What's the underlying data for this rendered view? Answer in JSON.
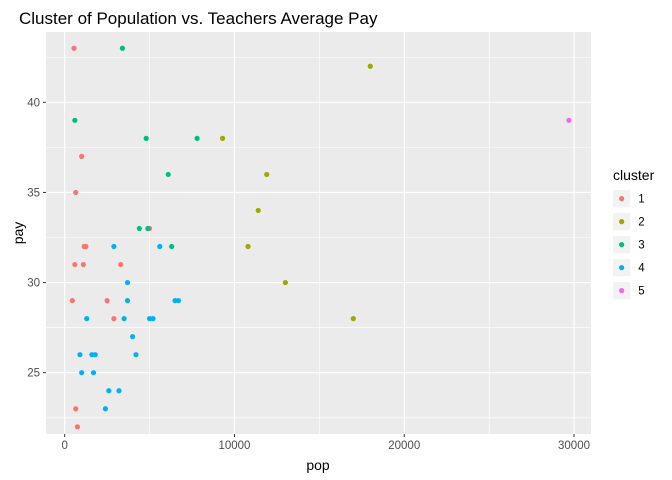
{
  "chart_data": {
    "type": "scatter",
    "title": "Cluster of Population vs. Teachers Average Pay",
    "xlabel": "pop",
    "ylabel": "pay",
    "xlim": [
      -1100,
      31000
    ],
    "ylim": [
      21.6,
      43.9
    ],
    "x_ticks": [
      0,
      10000,
      20000,
      30000
    ],
    "x_tick_labels": [
      "0",
      "10000",
      "20000",
      "30000"
    ],
    "y_ticks": [
      25,
      30,
      35,
      40
    ],
    "y_tick_labels": [
      "25",
      "30",
      "35",
      "40"
    ],
    "grid": true,
    "legend_title": "cluster",
    "legend_position": "right",
    "series": [
      {
        "name": "1",
        "color": "#F8766D",
        "points": [
          [
            550,
            43
          ],
          [
            1000,
            37
          ],
          [
            650,
            35
          ],
          [
            1150,
            32
          ],
          [
            1250,
            32
          ],
          [
            5000,
            33
          ],
          [
            600,
            31
          ],
          [
            1100,
            31
          ],
          [
            3300,
            31
          ],
          [
            450,
            29
          ],
          [
            2500,
            29
          ],
          [
            2900,
            28
          ],
          [
            650,
            23
          ],
          [
            750,
            22
          ]
        ]
      },
      {
        "name": "2",
        "color": "#A3A500",
        "points": [
          [
            18000,
            42
          ],
          [
            9300,
            38
          ],
          [
            11900,
            36
          ],
          [
            11400,
            34
          ],
          [
            10800,
            32
          ],
          [
            13000,
            30
          ],
          [
            17000,
            28
          ]
        ]
      },
      {
        "name": "3",
        "color": "#00BF7D",
        "points": [
          [
            3400,
            43
          ],
          [
            600,
            39
          ],
          [
            4800,
            38
          ],
          [
            7800,
            38
          ],
          [
            6100,
            36
          ],
          [
            4400,
            33
          ],
          [
            4900,
            33
          ],
          [
            6300,
            32
          ]
        ]
      },
      {
        "name": "4",
        "color": "#00B0F6",
        "points": [
          [
            2900,
            32
          ],
          [
            5600,
            32
          ],
          [
            3700,
            30
          ],
          [
            3700,
            29
          ],
          [
            6500,
            29
          ],
          [
            6700,
            29
          ],
          [
            1300,
            28
          ],
          [
            3500,
            28
          ],
          [
            5000,
            28
          ],
          [
            5200,
            28
          ],
          [
            4000,
            27
          ],
          [
            900,
            26
          ],
          [
            1600,
            26
          ],
          [
            1800,
            26
          ],
          [
            4200,
            26
          ],
          [
            1000,
            25
          ],
          [
            1700,
            25
          ],
          [
            2600,
            24
          ],
          [
            3200,
            24
          ],
          [
            2400,
            23
          ]
        ]
      },
      {
        "name": "5",
        "color": "#E76BF3",
        "points": [
          [
            29700,
            39
          ]
        ]
      }
    ]
  }
}
